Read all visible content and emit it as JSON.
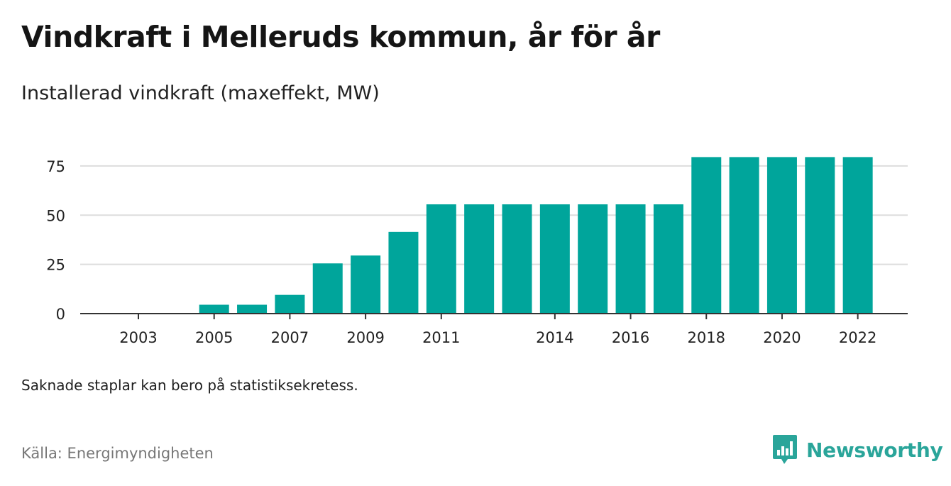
{
  "header": {
    "title": "Vindkraft i Melleruds kommun, år för år",
    "subtitle": "Installerad vindkraft (maxeffekt, MW)"
  },
  "footer": {
    "note": "Saknade staplar kan bero på statistiksekretess.",
    "source": "Källa: Energimyndigheten",
    "brand": "Newsworthy",
    "brand_icon": "newsworthy-logo-icon"
  },
  "colors": {
    "bar": "#00a59b",
    "grid": "#dddddd",
    "axis": "#333333",
    "brand": "#2aa59a"
  },
  "chart_data": {
    "type": "bar",
    "categories": [
      "2003",
      "2004",
      "2005",
      "2006",
      "2007",
      "2008",
      "2009",
      "2010",
      "2011",
      "2012",
      "2013",
      "2014",
      "2015",
      "2016",
      "2017",
      "2018",
      "2019",
      "2020",
      "2021",
      "2022"
    ],
    "values": [
      null,
      null,
      4.5,
      4.5,
      9.5,
      25.5,
      29.5,
      41.5,
      55.5,
      55.5,
      55.5,
      55.5,
      55.5,
      55.5,
      55.5,
      79.5,
      79.5,
      79.5,
      79.5,
      79.5
    ],
    "x_tick_labels": [
      "2003",
      "2005",
      "2007",
      "2009",
      "2011",
      "2014",
      "2016",
      "2018",
      "2020",
      "2022"
    ],
    "y_ticks": [
      0,
      25,
      50,
      75
    ],
    "ylim": [
      0,
      80
    ],
    "grid": true,
    "title": "Vindkraft i Melleruds kommun, år för år",
    "ylabel": "",
    "xlabel": ""
  }
}
